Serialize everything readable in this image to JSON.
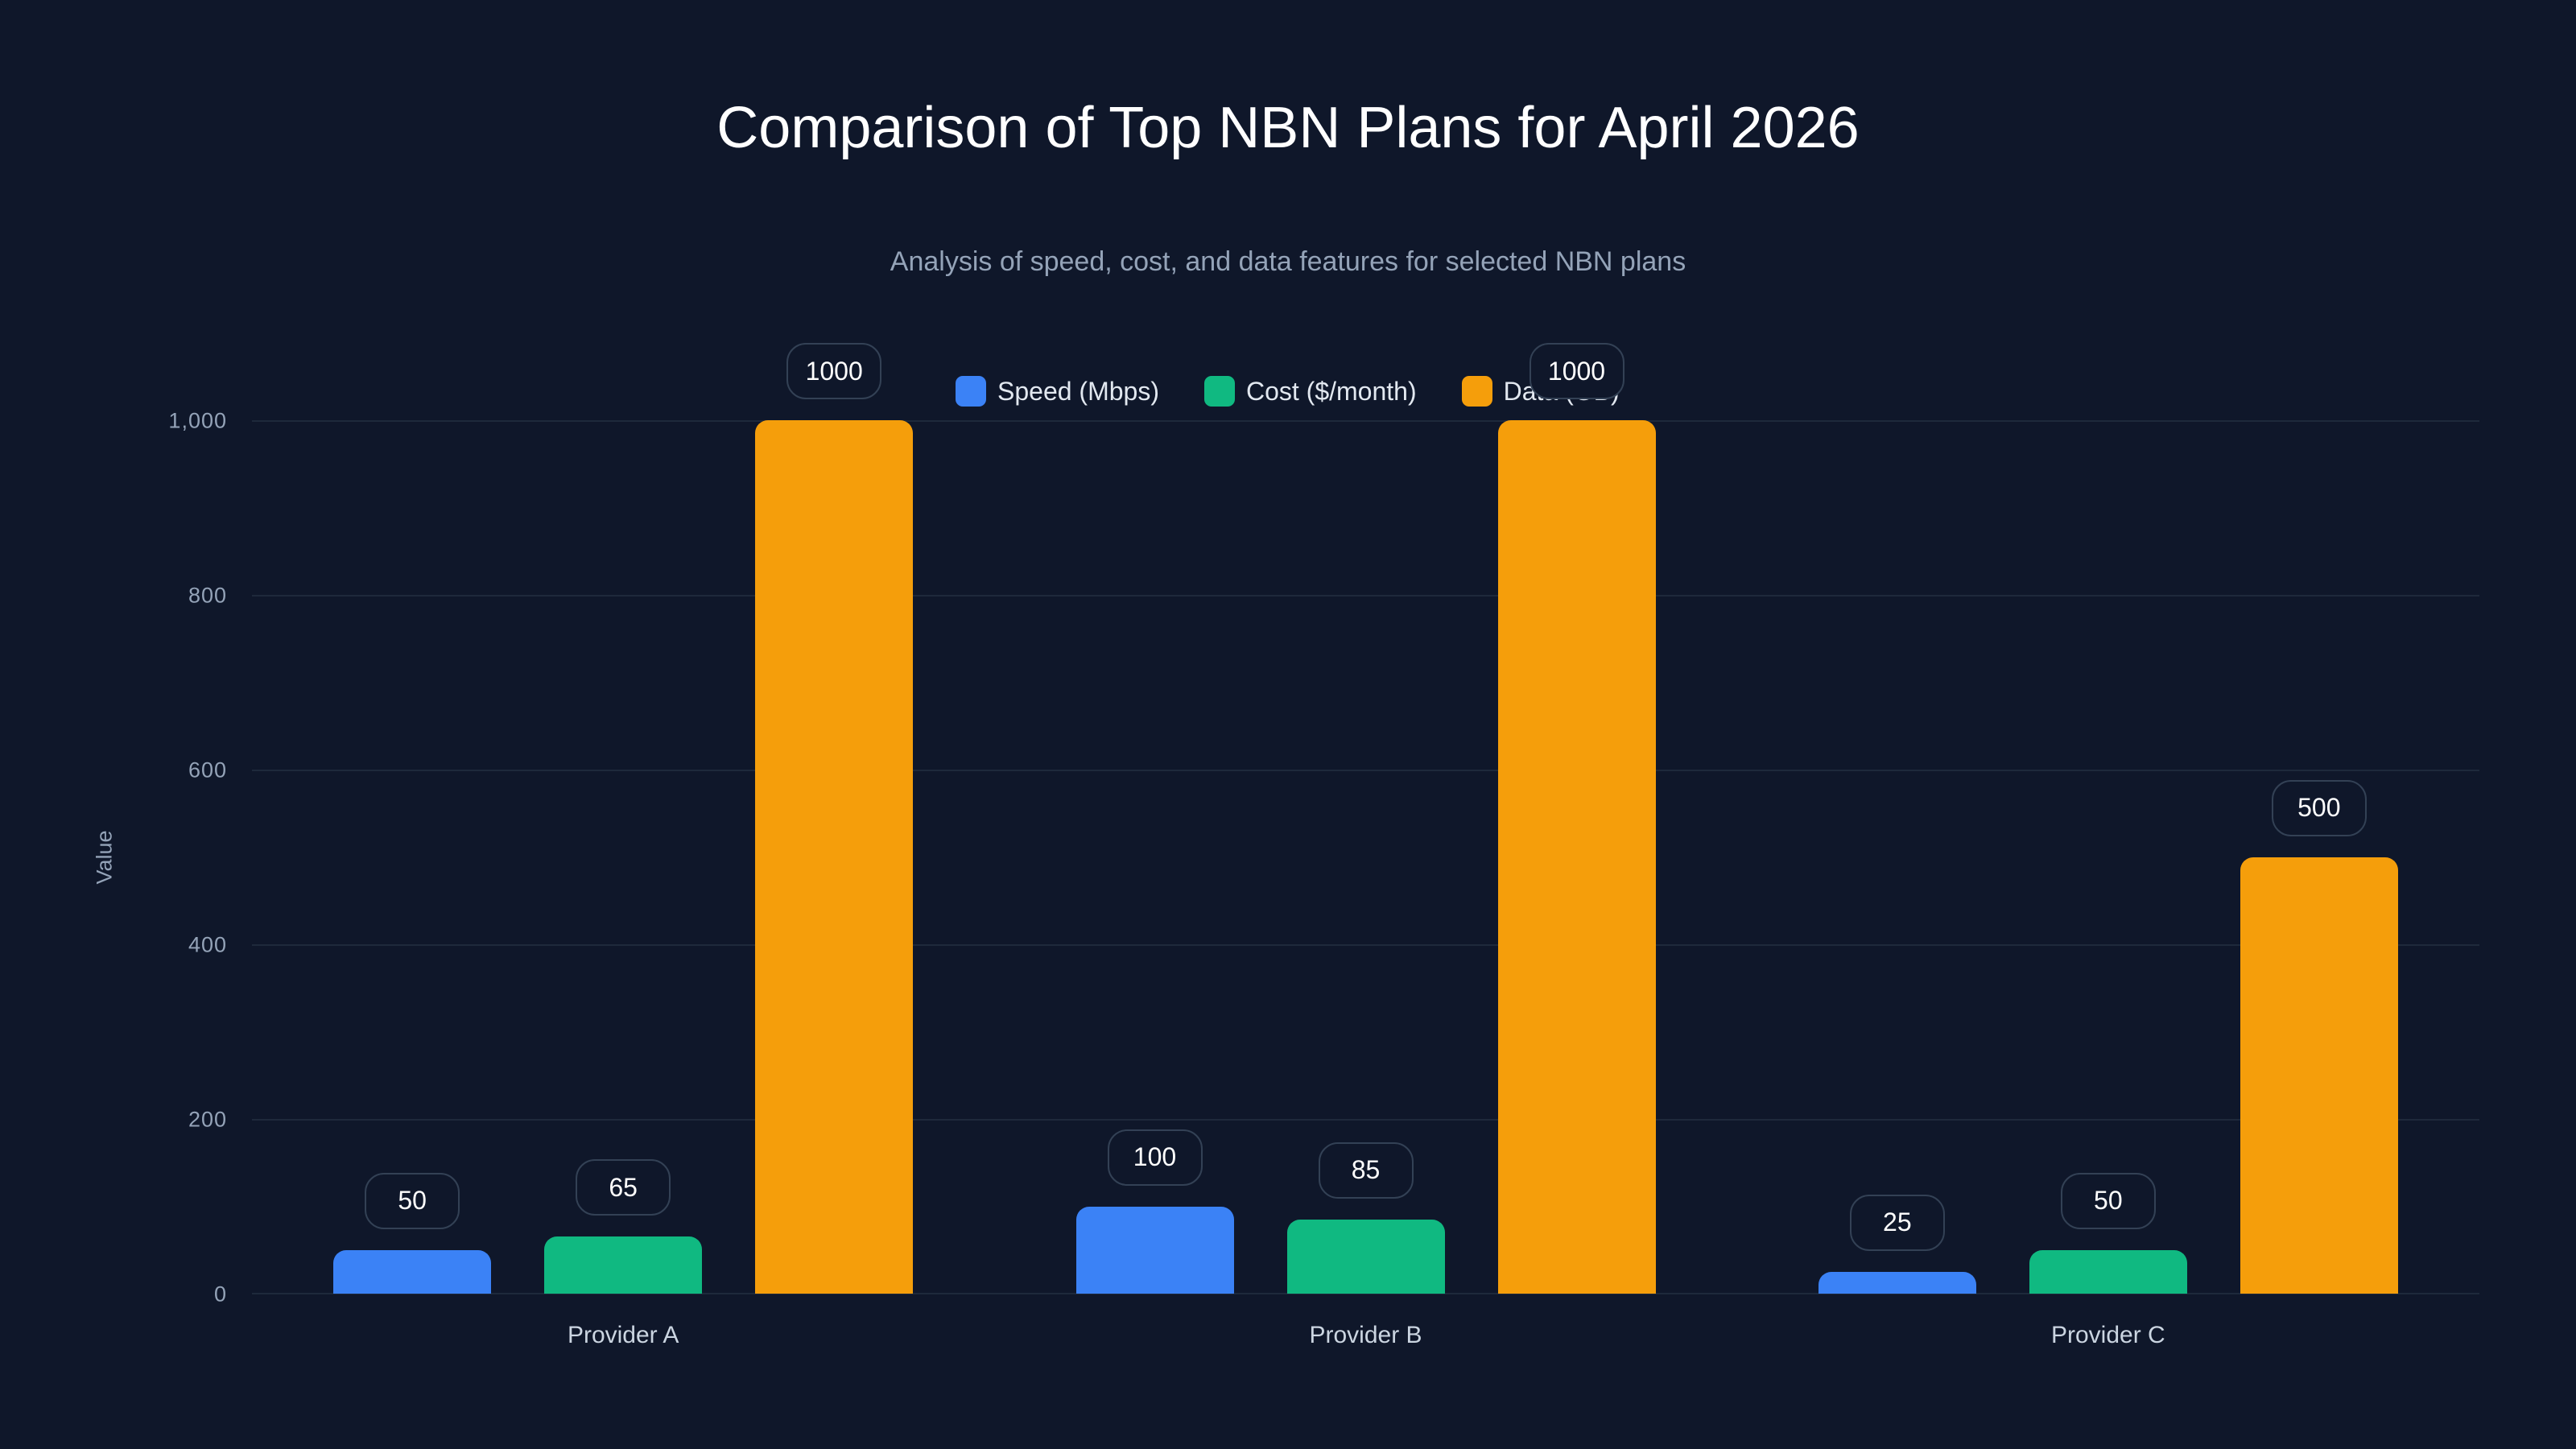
{
  "header": {
    "title": "Comparison of Top NBN Plans for April 2026",
    "subtitle": "Analysis of speed, cost, and data features for selected NBN plans"
  },
  "legend": [
    {
      "label": "Speed (Mbps)",
      "color": "#3b82f6"
    },
    {
      "label": "Cost ($/month)",
      "color": "#10b981"
    },
    {
      "label": "Data (GB)",
      "color": "#f59e0b"
    }
  ],
  "axis": {
    "ylabel": "Value",
    "ticks": [
      "0",
      "200",
      "400",
      "600",
      "800",
      "1,000"
    ]
  },
  "colors": {
    "background": "#0f172a",
    "grid": "#1e293b",
    "label_border": "#334155"
  },
  "chart_data": {
    "type": "bar",
    "title": "Comparison of Top NBN Plans for April 2026",
    "subtitle": "Analysis of speed, cost, and data features for selected NBN plans",
    "categories": [
      "Provider A",
      "Provider B",
      "Provider C"
    ],
    "series": [
      {
        "name": "Speed (Mbps)",
        "color": "#3b82f6",
        "values": [
          50,
          100,
          25
        ]
      },
      {
        "name": "Cost ($/month)",
        "color": "#10b981",
        "values": [
          65,
          85,
          50
        ]
      },
      {
        "name": "Data (GB)",
        "color": "#f59e0b",
        "values": [
          1000,
          1000,
          500
        ]
      }
    ],
    "xlabel": "",
    "ylabel": "Value",
    "ylim": [
      0,
      1000
    ],
    "yticks": [
      0,
      200,
      400,
      600,
      800,
      1000
    ],
    "grid": true,
    "legend_position": "top-center",
    "data_labels": true
  }
}
